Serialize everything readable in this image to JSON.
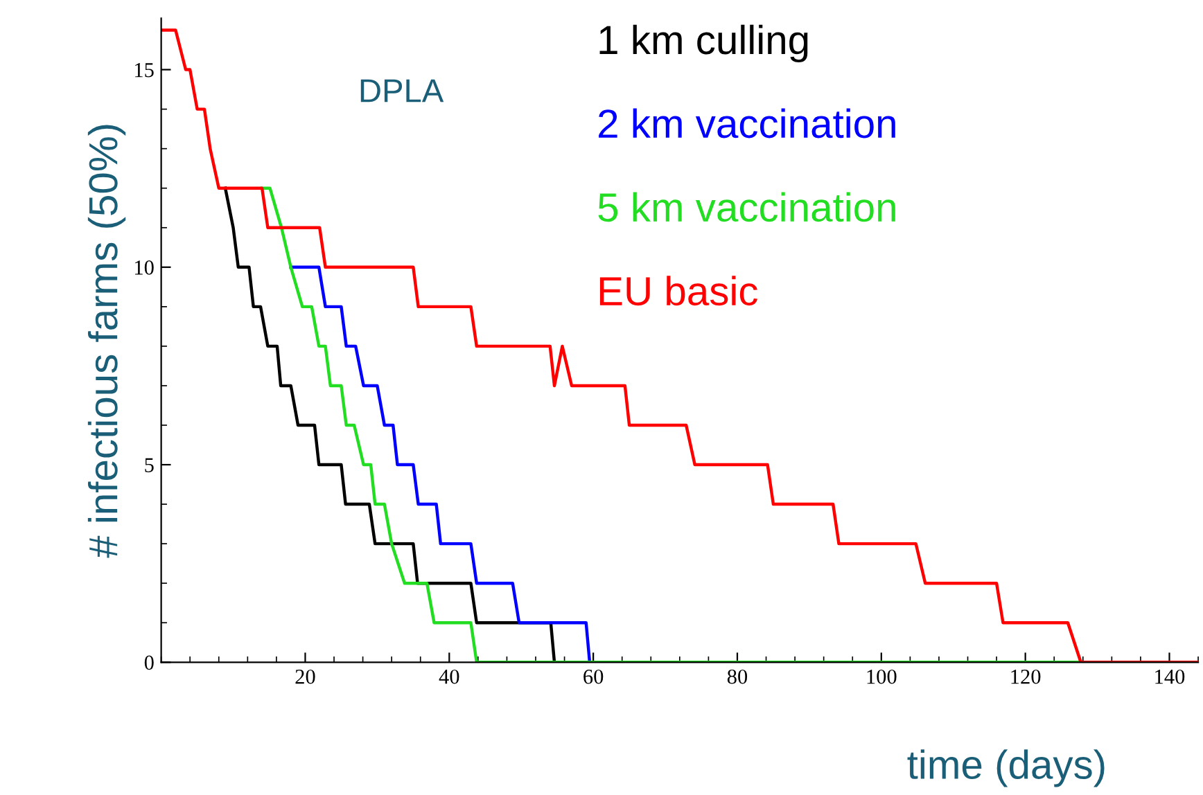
{
  "chart_data": {
    "type": "line",
    "xlabel": "time (days)",
    "ylabel": "# infectious farms (50%)",
    "annotations": [
      "DPLA"
    ],
    "xlim": [
      0,
      144
    ],
    "ylim": [
      0,
      16.3
    ],
    "xticks": [
      20,
      40,
      60,
      80,
      100,
      120,
      140
    ],
    "yticks": [
      0,
      5,
      10,
      15
    ],
    "grid": false,
    "legend": "top right",
    "marker": "none",
    "line_style": "solid",
    "series": [
      {
        "name": "1 km culling",
        "color": "#000000",
        "x": [
          8.9,
          10,
          10.7,
          12.2,
          12.8,
          13.8,
          14.8,
          16.1,
          16.6,
          18,
          19,
          21.3,
          21.9,
          25,
          25.6,
          28.9,
          29.7,
          35,
          35.6,
          43,
          43.8,
          54.1,
          54.6
        ],
        "values": [
          12,
          11,
          10,
          10,
          9,
          9,
          8,
          8,
          7,
          7,
          6,
          6,
          5,
          5,
          4,
          4,
          3,
          3,
          2,
          2,
          1,
          1,
          0
        ]
      },
      {
        "name": "2 km vaccination",
        "color": "#0000ff",
        "x": [
          18,
          21.9,
          22.8,
          25,
          25.7,
          27,
          28.1,
          30,
          31,
          32.2,
          32.8,
          35,
          35.7,
          38.2,
          38.8,
          43,
          43.8,
          48.8,
          49.7,
          59,
          59.5
        ],
        "values": [
          10,
          10,
          9,
          9,
          8,
          8,
          7,
          7,
          6,
          6,
          5,
          5,
          4,
          4,
          3,
          3,
          2,
          2,
          1,
          1,
          0
        ]
      },
      {
        "name": "5 km vaccination",
        "color": "#22dd22",
        "x": [
          14,
          15.1,
          16.7,
          18,
          19.6,
          20.9,
          21.9,
          22.8,
          23.5,
          25,
          25.7,
          26.8,
          28.1,
          29.1,
          29.7,
          31,
          32,
          33.8,
          36.9,
          37.9,
          43,
          43.8,
          144
        ],
        "values": [
          12,
          12,
          11,
          10,
          9,
          9,
          8,
          8,
          7,
          7,
          6,
          6,
          5,
          5,
          4,
          4,
          3,
          2,
          2,
          1,
          1,
          0,
          0
        ]
      },
      {
        "name": "EU basic",
        "color": "#ff0000",
        "x": [
          0,
          2,
          3.4,
          4,
          5,
          6,
          6.8,
          8,
          14,
          14.8,
          22,
          22.8,
          35,
          35.7,
          43,
          43.8,
          54,
          54.6,
          55.7,
          57,
          64.4,
          65,
          72.9,
          74.1,
          84.2,
          85,
          93.3,
          94.1,
          104.8,
          106.1,
          116,
          116.9,
          125.9,
          127.7,
          144
        ],
        "values": [
          16,
          16,
          15,
          15,
          14,
          14,
          13,
          12,
          12,
          11,
          11,
          10,
          10,
          9,
          9,
          8,
          8,
          7,
          8,
          7,
          7,
          6,
          6,
          5,
          5,
          4,
          4,
          3,
          3,
          2,
          2,
          1,
          1,
          0,
          0
        ]
      }
    ]
  }
}
